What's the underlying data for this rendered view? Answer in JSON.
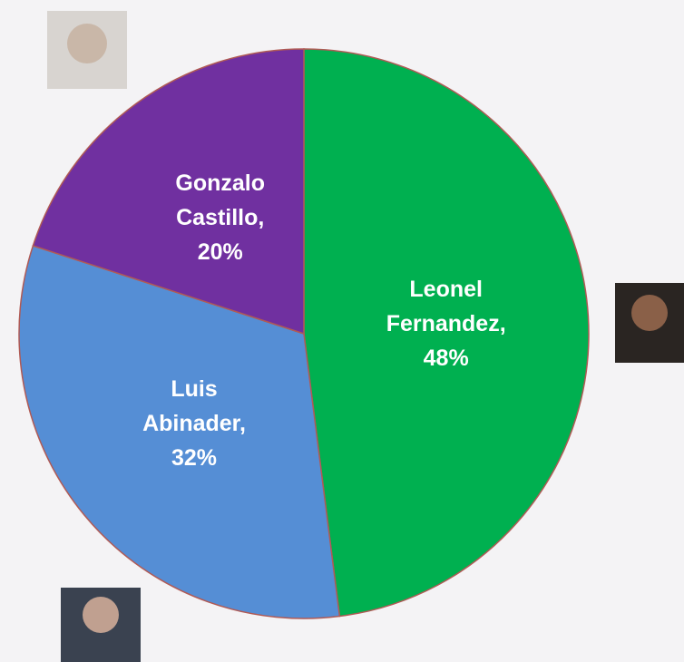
{
  "chart_data": {
    "type": "pie",
    "categories": [
      "Leonel Fernandez",
      "Luis Abinader",
      "Gonzalo Castillo"
    ],
    "values": [
      48,
      32,
      20
    ],
    "value_labels": [
      "Leonel Fernandez, 48%",
      "Luis Abinader, 32%",
      "Gonzalo Castillo, 20%"
    ],
    "colors": [
      "#00b050",
      "#558ed5",
      "#7030a0"
    ]
  }
}
